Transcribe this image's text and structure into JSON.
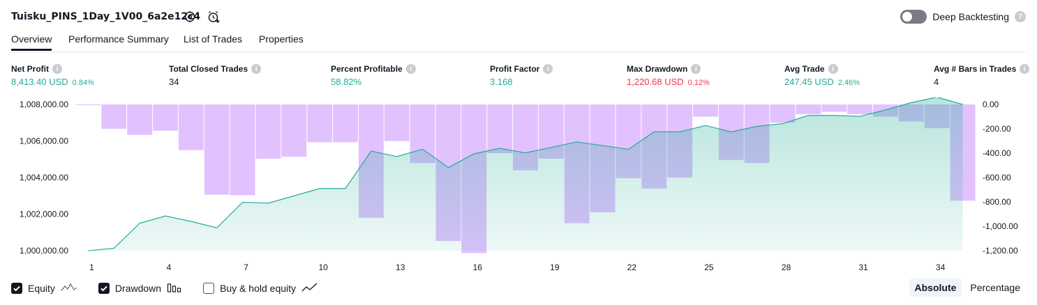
{
  "header": {
    "title": "Tuisku_PINS_1Day_1V00_6a2e12c4",
    "icons": [
      "settings-icon",
      "alarm-add-icon"
    ],
    "deep_backtesting_label": "Deep Backtesting",
    "deep_backtesting_enabled": false,
    "help_glyph": "?"
  },
  "tabs": [
    {
      "label": "Overview",
      "active": true
    },
    {
      "label": "Performance Summary",
      "active": false
    },
    {
      "label": "List of Trades",
      "active": false
    },
    {
      "label": "Properties",
      "active": false
    }
  ],
  "metrics": {
    "info_glyph": "i",
    "items": [
      {
        "label": "Net Profit",
        "value": "8,413.40 USD",
        "percent": "0.84%",
        "tone": "pos"
      },
      {
        "label": "Total Closed Trades",
        "value": "34",
        "percent": "",
        "tone": "neutral"
      },
      {
        "label": "Percent Profitable",
        "value": "58.82%",
        "percent": "",
        "tone": "pos"
      },
      {
        "label": "Profit Factor",
        "value": "3.168",
        "percent": "",
        "tone": "pos"
      },
      {
        "label": "Max Drawdown",
        "value": "1,220.68 USD",
        "percent": "0.12%",
        "tone": "neg"
      },
      {
        "label": "Avg Trade",
        "value": "247.45 USD",
        "percent": "2.46%",
        "tone": "pos"
      },
      {
        "label": "Avg # Bars in Trades",
        "value": "4",
        "percent": "",
        "tone": "neutral"
      }
    ]
  },
  "chart_data": {
    "type": "line+bar",
    "x": [
      1,
      2,
      3,
      4,
      5,
      6,
      7,
      8,
      9,
      10,
      11,
      12,
      13,
      14,
      15,
      16,
      17,
      18,
      19,
      20,
      21,
      22,
      23,
      24,
      25,
      26,
      27,
      28,
      29,
      30,
      31,
      32,
      33,
      34,
      35
    ],
    "x_ticks": [
      1,
      4,
      7,
      10,
      13,
      16,
      19,
      22,
      25,
      28,
      31,
      34
    ],
    "series": [
      {
        "name": "Equity",
        "axis": "left",
        "color": "#22ab94",
        "values": [
          1000000,
          1000130,
          1001500,
          1001900,
          1001600,
          1001250,
          1002650,
          1002600,
          1003000,
          1003400,
          1003400,
          1005450,
          1005150,
          1005550,
          1004550,
          1005300,
          1005600,
          1005350,
          1005650,
          1005950,
          1005750,
          1005550,
          1006500,
          1006500,
          1006850,
          1006500,
          1006800,
          1006950,
          1007400,
          1007400,
          1007350,
          1007700,
          1008100,
          1008400,
          1008000
        ]
      },
      {
        "name": "Drawdown",
        "axis": "right",
        "color": "#cf9cff",
        "values": [
          -5,
          -200,
          -250,
          -215,
          -375,
          -740,
          -745,
          -445,
          -430,
          -310,
          -310,
          -930,
          -300,
          -480,
          -1120,
          -1220,
          -400,
          -540,
          -445,
          -975,
          -885,
          -605,
          -690,
          -600,
          -100,
          -455,
          -480,
          -150,
          -80,
          -60,
          -80,
          -100,
          -140,
          -195,
          -790
        ]
      }
    ],
    "yleft": {
      "min": 1000000,
      "max": 1008000,
      "ticks": [
        1000000,
        1002000,
        1004000,
        1006000,
        1008000
      ],
      "labels": [
        "1,000,000.00",
        "1,002,000.00",
        "1,004,000.00",
        "1,006,000.00",
        "1,008,000.00"
      ]
    },
    "yright": {
      "min": -1200,
      "max": 0,
      "ticks": [
        0,
        -200,
        -400,
        -600,
        -800,
        -1000,
        -1200
      ],
      "labels": [
        "0.00",
        "-200.00",
        "-400.00",
        "-600.00",
        "-800.00",
        "-1,000.00",
        "-1,200.00"
      ]
    }
  },
  "legend": {
    "items": [
      {
        "label": "Equity",
        "checked": true,
        "icon": "equity-line-icon"
      },
      {
        "label": "Drawdown",
        "checked": true,
        "icon": "drawdown-bars-icon"
      },
      {
        "label": "Buy & hold equity",
        "checked": false,
        "icon": "buy-hold-line-icon"
      }
    ],
    "modes": [
      {
        "label": "Absolute",
        "active": true
      },
      {
        "label": "Percentage",
        "active": false
      }
    ]
  }
}
